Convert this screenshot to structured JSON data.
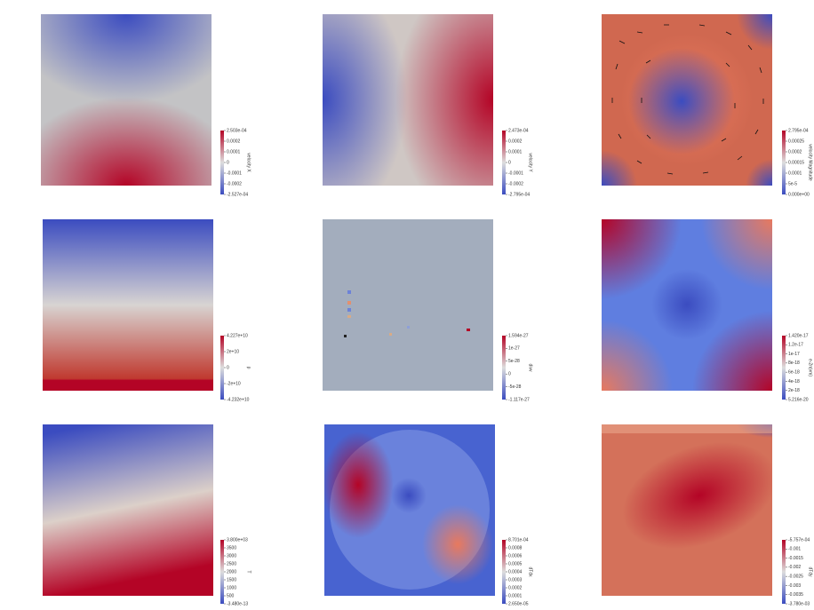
{
  "panels": [
    {
      "colorbar": {
        "title": "velocity X",
        "labels": [
          "2.503e-04",
          "0.0002",
          "0.0001",
          "0",
          "-0.0001",
          "-0.0002",
          "-2.527e-04"
        ]
      }
    },
    {
      "colorbar": {
        "title": "velocity Y",
        "labels": [
          "2.473e-04",
          "0.0002",
          "0.0001",
          "0",
          "-0.0001",
          "-0.0002",
          "-2.795e-04"
        ]
      }
    },
    {
      "colorbar": {
        "title": "velocity Magnitude",
        "labels": [
          "2.795e-04",
          "0.00025",
          "0.0002",
          "0.00015",
          "0.0001",
          "5e-5",
          "0.000e+00"
        ]
      }
    },
    {
      "colorbar": {
        "title": "p",
        "labels": [
          "4.227e+10",
          "2e+10",
          "0",
          "-2e+10",
          "-4.232e+10"
        ]
      }
    },
    {
      "colorbar": {
        "title": "divv",
        "labels": [
          "1.594e-27",
          "1e-27",
          "5e-28",
          "0",
          "-5e-28",
          "-1.117e-27"
        ]
      }
    },
    {
      "colorbar": {
        "title": "e-2n(vm)",
        "labels": [
          "1.420e-17",
          "1.2e-17",
          "1e-17",
          "8e-18",
          "6e-18",
          "4e-18",
          "2e-18",
          "5.216e-20"
        ]
      }
    },
    {
      "colorbar": {
        "title": "T",
        "labels": [
          "3.800e+03",
          "3500",
          "3000",
          "2500",
          "2000",
          "1500",
          "1000",
          "500",
          "-3.480e-13"
        ]
      }
    },
    {
      "colorbar": {
        "title": "dTdx",
        "labels": [
          "8.701e-04",
          "0.0008",
          "0.0006",
          "0.0005",
          "0.0004",
          "0.0003",
          "0.0002",
          "0.0001",
          "2.650e-05"
        ]
      }
    },
    {
      "colorbar": {
        "title": "dTdy",
        "labels": [
          "-5.757e-04",
          "-0.001",
          "-0.0015",
          "-0.002",
          "-0.0025",
          "-0.003",
          "-0.0035",
          "-3.780e-03"
        ]
      }
    }
  ]
}
